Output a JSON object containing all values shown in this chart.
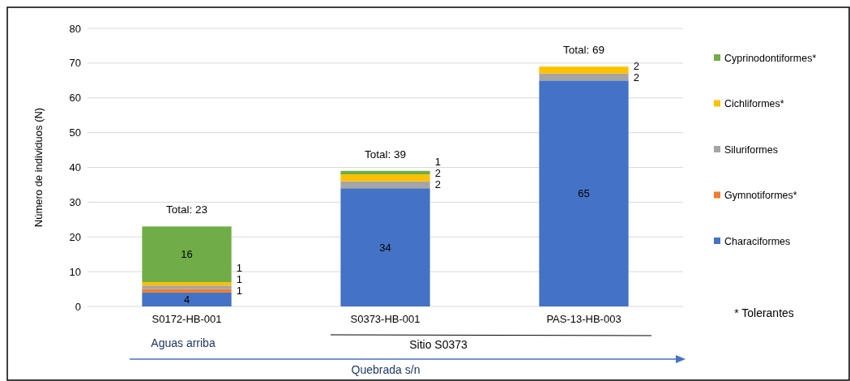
{
  "chart_data": {
    "type": "bar",
    "stacked": true,
    "ylabel": "Número de individuos  (N)",
    "categories": [
      "S0172-HB-001",
      "S0373-HB-001",
      "PAS-13-HB-003"
    ],
    "series": [
      {
        "name": "Characiformes",
        "color": "#4472c4",
        "values": [
          4,
          34,
          65
        ],
        "value_labels": [
          "4",
          "34",
          "65"
        ]
      },
      {
        "name": "Gymnotiformes*",
        "color": "#ed7d31",
        "values": [
          1,
          0,
          0
        ],
        "value_labels": [
          "1",
          null,
          null
        ]
      },
      {
        "name": "Siluriformes",
        "color": "#a5a5a5",
        "values": [
          1,
          2,
          2
        ],
        "value_labels": [
          "1",
          "2",
          "2"
        ]
      },
      {
        "name": "Cichliformes*",
        "color": "#ffc000",
        "values": [
          1,
          2,
          2
        ],
        "value_labels": [
          "1",
          "2",
          "2"
        ]
      },
      {
        "name": "Cyprinodontiformes*",
        "color": "#70ad47",
        "values": [
          16,
          1,
          0
        ],
        "value_labels": [
          "16",
          "1",
          null
        ]
      }
    ],
    "totals": [
      "Total:  23",
      "Total:  39",
      "Total:  69"
    ],
    "ylim": [
      0,
      80
    ],
    "yticks": [
      0,
      10,
      20,
      30,
      40,
      50,
      60,
      70,
      80
    ],
    "grid": "y",
    "legend": "right",
    "annotations": [
      "* Tolerantes",
      "Aguas  arriba",
      "Sitio S0373",
      "Quebrada s/n"
    ]
  }
}
